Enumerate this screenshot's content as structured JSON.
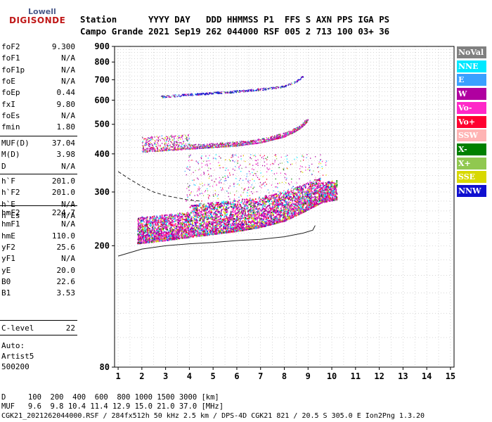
{
  "logo": {
    "line1": "Lowell",
    "line2": "DIGISONDE"
  },
  "header": {
    "line1": "Station      YYYY DAY   DDD HHMMSS P1  FFS S AXN PPS IGA PS",
    "line2": "Campo Grande 2021 Sep19 262 044000 RSF 005 2 713 100 03+ 36"
  },
  "params_group1": [
    {
      "name": "foF2",
      "value": "9.300"
    },
    {
      "name": "foF1",
      "value": "N/A"
    },
    {
      "name": "foF1p",
      "value": "N/A"
    },
    {
      "name": "foE",
      "value": "N/A"
    },
    {
      "name": "foEp",
      "value": "0.44"
    },
    {
      "name": "fxI",
      "value": "9.80"
    },
    {
      "name": "foEs",
      "value": "N/A"
    },
    {
      "name": "fmin",
      "value": "1.80"
    }
  ],
  "params_group2": [
    {
      "name": "MUF(D)",
      "value": "37.04"
    },
    {
      "name": "M(D)",
      "value": "3.98"
    },
    {
      "name": "D",
      "value": "N/A"
    }
  ],
  "params_group3": [
    {
      "name": "h`F",
      "value": "201.0"
    },
    {
      "name": "h`F2",
      "value": "201.0"
    },
    {
      "name": "h`E",
      "value": "N/A"
    },
    {
      "name": "h`Es",
      "value": "N/A"
    }
  ],
  "params_group4": [
    {
      "name": "hmF2",
      "value": "224.7"
    },
    {
      "name": "hmF1",
      "value": "N/A"
    },
    {
      "name": "hmE",
      "value": "110.0"
    },
    {
      "name": "yF2",
      "value": "25.6"
    },
    {
      "name": "yF1",
      "value": "N/A"
    },
    {
      "name": "yE",
      "value": "20.0"
    },
    {
      "name": "B0",
      "value": "22.6"
    },
    {
      "name": "B1",
      "value": "3.53"
    }
  ],
  "params_group5": [
    {
      "name": "C-level",
      "value": "22"
    }
  ],
  "auto": {
    "line1": "Auto:",
    "line2": "Artist5",
    "line3": "500200"
  },
  "legend": [
    {
      "label": "NoVal",
      "color": "#808080"
    },
    {
      "label": "NNE",
      "color": "#00e8ff"
    },
    {
      "label": "E",
      "color": "#3aa0ff"
    },
    {
      "label": "W",
      "color": "#b000a0"
    },
    {
      "label": "Vo-",
      "color": "#ff28c8"
    },
    {
      "label": "Vo+",
      "color": "#ff0030"
    },
    {
      "label": "SSW",
      "color": "#ffb4b4"
    },
    {
      "label": "X-",
      "color": "#008000"
    },
    {
      "label": "X+",
      "color": "#90c850"
    },
    {
      "label": "SSE",
      "color": "#d8d800"
    },
    {
      "label": "NNW",
      "color": "#1010d0"
    }
  ],
  "footer": {
    "line1": "D     100  200  400  600  800 1000 1500 3000 [km]",
    "line2": "MUF   9.6  9.8 10.4 11.4 12.9 15.0 21.0 37.0 [MHz]",
    "line3": "CGK21_2021262044000.RSF / 284fx512h 50 kHz 2.5 km / DPS-4D CGK21 821 / 20.5 S 305.0 E Ion2Png 1.3.20"
  },
  "chart_data": {
    "type": "scatter",
    "x_ticks": [
      1,
      2,
      3,
      4,
      5,
      6,
      7,
      8,
      9,
      10,
      11,
      12,
      13,
      14,
      15
    ],
    "y_ticks": [
      80,
      200,
      300,
      400,
      500,
      600,
      700,
      800,
      900
    ],
    "xlim": [
      0.85,
      15.15
    ],
    "ylim": [
      80,
      900
    ],
    "y_scale": "log",
    "grid": "dotted",
    "traces": [
      {
        "name": "F 1st hop",
        "x": [
          1.8,
          2.3,
          3,
          4,
          5,
          6,
          7,
          8,
          8.8,
          9.2,
          9.6,
          10.2
        ],
        "y": [
          210,
          212,
          215,
          220,
          225,
          230,
          237,
          248,
          265,
          275,
          285,
          290
        ]
      },
      {
        "name": "F 2nd hop",
        "x": [
          2,
          3,
          4,
          5,
          6,
          7,
          8,
          8.5,
          8.8,
          9
        ],
        "y": [
          410,
          415,
          420,
          425,
          430,
          440,
          460,
          480,
          500,
          520
        ]
      },
      {
        "name": "F 3rd hop",
        "x": [
          2.8,
          3.5,
          4,
          5,
          6,
          7,
          8,
          8.5,
          8.8
        ],
        "y": [
          615,
          620,
          625,
          632,
          640,
          650,
          665,
          690,
          720
        ]
      },
      {
        "name": "profile",
        "x": [
          1,
          2,
          3,
          4,
          5,
          6,
          7,
          8,
          8.8,
          9.2,
          9.3
        ],
        "y": [
          185,
          195,
          200,
          203,
          205,
          208,
          210,
          214,
          220,
          225,
          233
        ]
      },
      {
        "name": "dashed",
        "x": [
          1,
          1.5,
          2,
          2.5,
          3,
          3.5,
          4,
          4.5
        ],
        "y": [
          350,
          330,
          313,
          300,
          292,
          287,
          282,
          280
        ]
      }
    ]
  }
}
